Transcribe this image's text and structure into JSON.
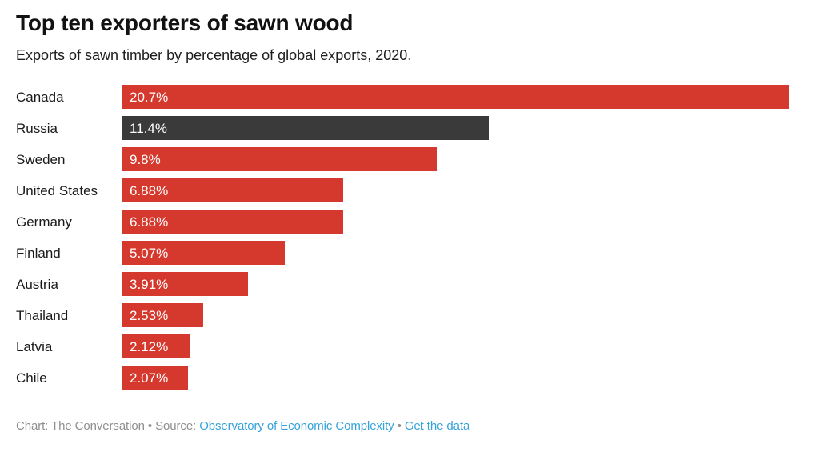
{
  "header": {
    "title": "Top ten exporters of sawn wood",
    "subtitle": "Exports of sawn timber by percentage of global exports, 2020."
  },
  "chart_data": {
    "type": "bar",
    "orientation": "horizontal",
    "title": "Top ten exporters of sawn wood",
    "subtitle": "Exports of sawn timber by percentage of global exports, 2020.",
    "categories": [
      "Canada",
      "Russia",
      "Sweden",
      "United States",
      "Germany",
      "Finland",
      "Austria",
      "Thailand",
      "Latvia",
      "Chile"
    ],
    "values": [
      20.7,
      11.4,
      9.8,
      6.88,
      6.88,
      5.07,
      3.91,
      2.53,
      2.12,
      2.07
    ],
    "value_labels": [
      "20.7%",
      "11.4%",
      "9.8%",
      "6.88%",
      "6.88%",
      "5.07%",
      "3.91%",
      "2.53%",
      "2.12%",
      "2.07%"
    ],
    "xlim": [
      0,
      20.7
    ],
    "grid": false,
    "legend": false,
    "bar_color_default": "#d5382c",
    "bar_color_highlight": "#3a3a3a",
    "highlight_index": 1,
    "value_label_color": "#ffffff"
  },
  "footer": {
    "credit": "Chart: The Conversation",
    "separator1": " • ",
    "source_label": "Source: ",
    "source_link": "Observatory of Economic Complexity",
    "separator2": " • ",
    "data_link": "Get the data",
    "link_color": "#35a3d9",
    "text_color": "#8f8f8f"
  }
}
